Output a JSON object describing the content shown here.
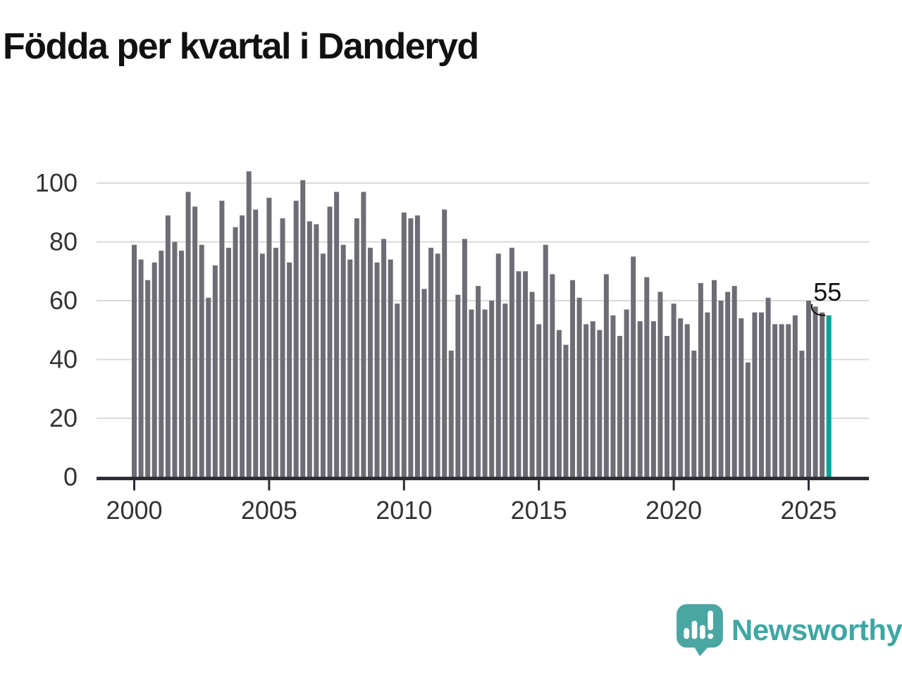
{
  "title": "Födda per kvartal i Danderyd",
  "logo": {
    "text": "Newsworthy"
  },
  "chart_data": {
    "type": "bar",
    "title": "Födda per kvartal i Danderyd",
    "frequency": "quarterly",
    "x_start": "2000 Q1",
    "x_end": "2025 Q4",
    "series": [
      {
        "name": "Födda",
        "values": [
          79,
          74,
          67,
          73,
          77,
          89,
          80,
          77,
          97,
          92,
          79,
          61,
          72,
          94,
          78,
          85,
          89,
          104,
          91,
          76,
          95,
          78,
          88,
          73,
          94,
          101,
          87,
          86,
          76,
          92,
          97,
          79,
          74,
          88,
          97,
          78,
          73,
          81,
          74,
          59,
          90,
          88,
          89,
          64,
          78,
          76,
          91,
          43,
          62,
          81,
          57,
          65,
          57,
          60,
          76,
          59,
          78,
          70,
          70,
          63,
          52,
          79,
          69,
          50,
          45,
          67,
          61,
          52,
          53,
          50,
          69,
          55,
          48,
          57,
          75,
          53,
          68,
          53,
          63,
          48,
          59,
          54,
          52,
          43,
          66,
          56,
          67,
          60,
          63,
          65,
          54,
          39,
          56,
          56,
          61,
          52,
          52,
          52,
          55,
          43,
          60,
          58,
          56,
          55
        ]
      }
    ],
    "highlight": {
      "index": 103,
      "label": "55",
      "quarter": "2025 Q4"
    },
    "y_ticks": [
      0,
      20,
      40,
      60,
      80,
      100
    ],
    "ylim": [
      0,
      110
    ],
    "x_tick_labels": [
      "2000",
      "2005",
      "2010",
      "2015",
      "2020",
      "2025"
    ],
    "grid": true,
    "legend_position": "none",
    "colors": {
      "bar": "#6e6d76",
      "highlight": "#00a39a",
      "grid": "#d9d9d9",
      "axis": "#2e2e35",
      "tick_text": "#333333",
      "annotation_text": "#111111",
      "title_text": "#111111",
      "logo_teal": "#4aa6a2"
    }
  }
}
